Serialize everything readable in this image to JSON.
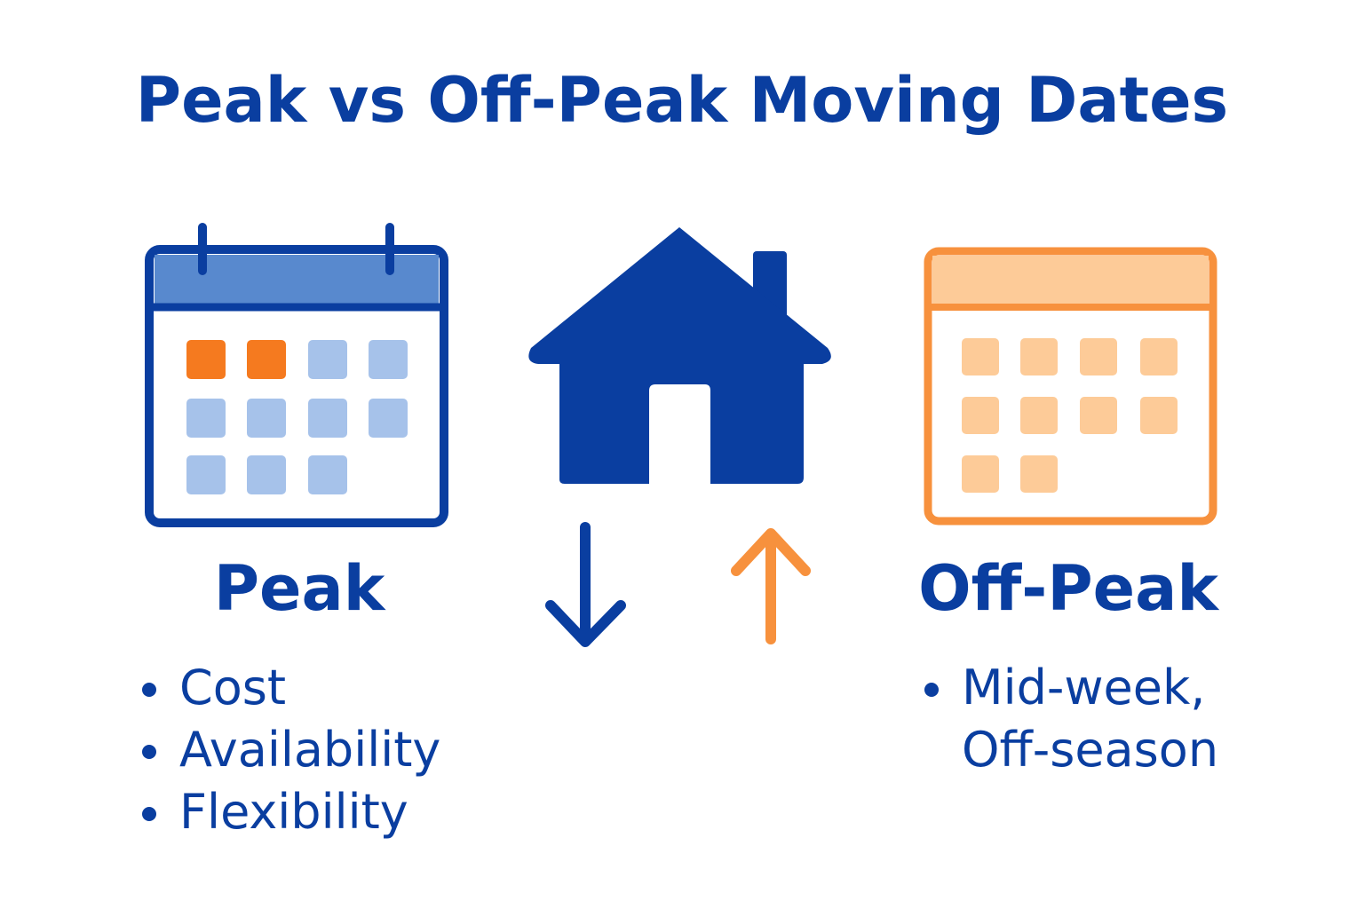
{
  "title": "Peak vs Off-Peak Moving Dates",
  "colors": {
    "blue": "#0A3EA0",
    "blue_header": "#5889CE",
    "blue_cell": "#A6C2EA",
    "orange": "#F7913D",
    "orange_cell": "#FDCB98",
    "orange_highlight": "#F57A1F"
  },
  "peak": {
    "label": "Peak",
    "icon": "calendar-icon",
    "highlighted_days": 2,
    "total_days": 11,
    "bullets": [
      "Cost",
      "Availability",
      "Flexibility"
    ]
  },
  "center": {
    "icon": "house-icon",
    "down_arrow": "arrow-down-icon",
    "up_arrow": "arrow-up-icon"
  },
  "offpeak": {
    "label": "Off-Peak",
    "icon": "calendar-icon",
    "total_days": 10,
    "bullets": [
      "Mid-week,"
    ],
    "bullet_continuation": "Off-season"
  }
}
